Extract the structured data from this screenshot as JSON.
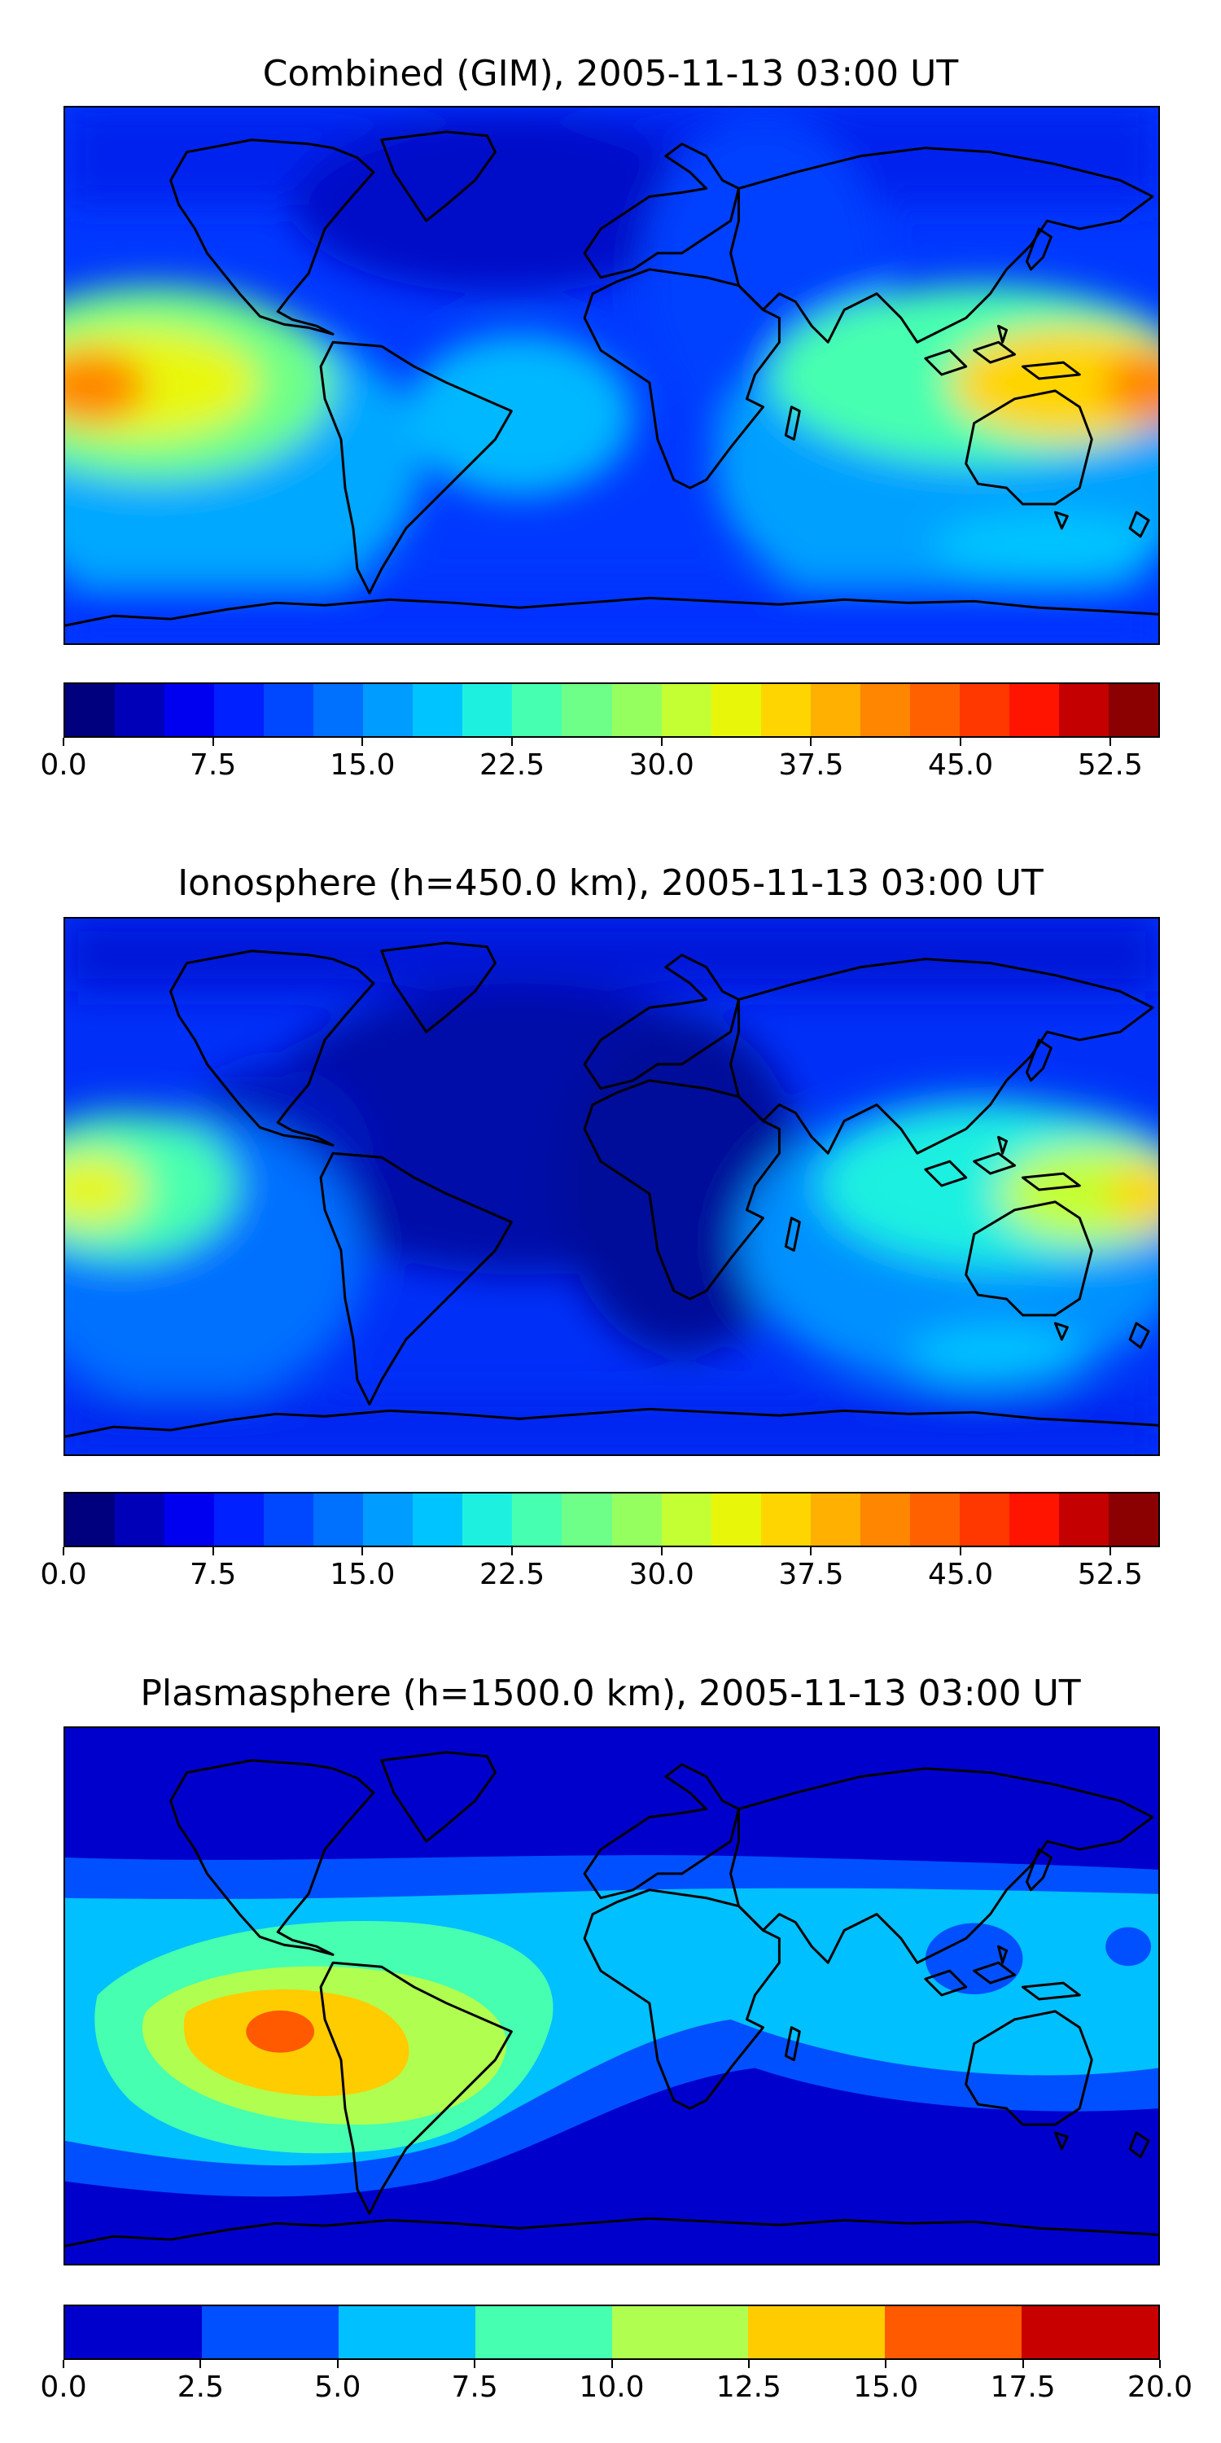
{
  "panels": [
    {
      "title": "Combined (GIM), 2005-11-13 03:00 UT",
      "colorbar": {
        "ticks": [
          "0.0",
          "7.5",
          "15.0",
          "22.5",
          "30.0",
          "37.5",
          "45.0",
          "52.5"
        ],
        "vmin": 0,
        "vmax": 55,
        "step": 2.5,
        "colors": [
          "#00007f",
          "#0000b8",
          "#0000f1",
          "#0020ff",
          "#0048ff",
          "#0070ff",
          "#009cff",
          "#00c4ff",
          "#1ef0e0",
          "#46ffb0",
          "#6eff88",
          "#96ff60",
          "#c4ff33",
          "#e8f70a",
          "#ffd500",
          "#ffb000",
          "#ff8600",
          "#ff6000",
          "#ff3800",
          "#ff1400",
          "#c40000",
          "#8b0000"
        ]
      }
    },
    {
      "title": "Ionosphere  (h=450.0 km), 2005-11-13 03:00 UT",
      "colorbar": {
        "ticks": [
          "0.0",
          "7.5",
          "15.0",
          "22.5",
          "30.0",
          "37.5",
          "45.0",
          "52.5"
        ],
        "vmin": 0,
        "vmax": 55,
        "step": 2.5,
        "colors": [
          "#00007f",
          "#0000b8",
          "#0000f1",
          "#0020ff",
          "#0048ff",
          "#0070ff",
          "#009cff",
          "#00c4ff",
          "#1ef0e0",
          "#46ffb0",
          "#6eff88",
          "#96ff60",
          "#c4ff33",
          "#e8f70a",
          "#ffd500",
          "#ffb000",
          "#ff8600",
          "#ff6000",
          "#ff3800",
          "#ff1400",
          "#c40000",
          "#8b0000"
        ]
      }
    },
    {
      "title": "Plasmasphere (h=1500.0 km), 2005-11-13 03:00 UT",
      "colorbar": {
        "ticks": [
          "0.0",
          "2.5",
          "5.0",
          "7.5",
          "10.0",
          "12.5",
          "15.0",
          "17.5",
          "20.0"
        ],
        "vmin": 0,
        "vmax": 20,
        "step": 2.5,
        "colors": [
          "#0000cd",
          "#0050ff",
          "#00c0ff",
          "#46ffb0",
          "#b0ff50",
          "#ffcc00",
          "#ff5a00",
          "#c80000"
        ]
      }
    }
  ]
}
